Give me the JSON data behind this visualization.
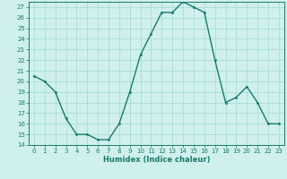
{
  "x": [
    0,
    1,
    2,
    3,
    4,
    5,
    6,
    7,
    8,
    9,
    10,
    11,
    12,
    13,
    14,
    15,
    16,
    17,
    18,
    19,
    20,
    21,
    22,
    23
  ],
  "y": [
    20.5,
    20.0,
    19.0,
    16.5,
    15.0,
    15.0,
    14.5,
    14.5,
    16.0,
    19.0,
    22.5,
    24.5,
    26.5,
    26.5,
    27.5,
    27.0,
    26.5,
    22.0,
    18.0,
    18.5,
    19.5,
    18.0,
    16.0,
    16.0
  ],
  "xlabel": "Humidex (Indice chaleur)",
  "ylim": [
    14,
    27.5
  ],
  "xlim": [
    -0.5,
    23.5
  ],
  "yticks": [
    14,
    15,
    16,
    17,
    18,
    19,
    20,
    21,
    22,
    23,
    24,
    25,
    26,
    27
  ],
  "xticks": [
    0,
    1,
    2,
    3,
    4,
    5,
    6,
    7,
    8,
    9,
    10,
    11,
    12,
    13,
    14,
    15,
    16,
    17,
    18,
    19,
    20,
    21,
    22,
    23
  ],
  "xtick_labels": [
    "0",
    "1",
    "2",
    "3",
    "4",
    "5",
    "6",
    "7",
    "8",
    "9",
    "10",
    "11",
    "12",
    "13",
    "14",
    "15",
    "16",
    "17",
    "18",
    "19",
    "20",
    "21",
    "22",
    "23"
  ],
  "line_color": "#1a7a6e",
  "marker_color": "#1a7a6e",
  "bg_color": "#cff0ec",
  "grid_color": "#a8ddd8",
  "tick_color": "#1a7a6e",
  "label_color": "#1a7a6e",
  "spine_color": "#1a7a6e"
}
